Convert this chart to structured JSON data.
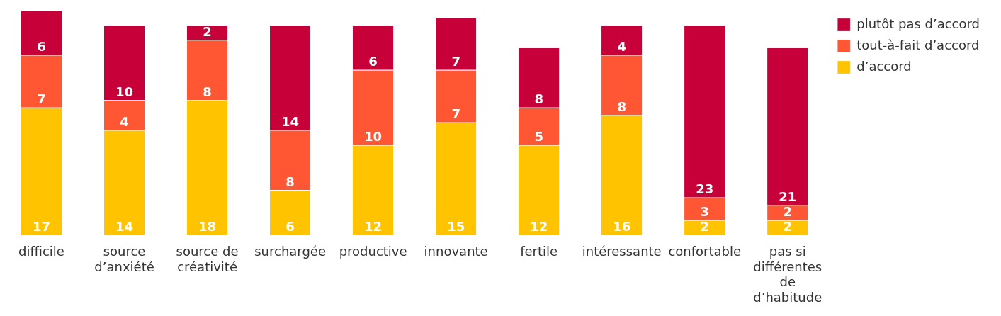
{
  "chart_data": {
    "type": "bar",
    "stacked": true,
    "data_labels": true,
    "grid": false,
    "legend": "top right",
    "categories": [
      "difficile",
      "source d’anxiété",
      "source de créativité",
      "surchargée",
      "productive",
      "innovante",
      "fertile",
      "intéressante",
      "confortable",
      "pas si différentes de d’habitude"
    ],
    "series": [
      {
        "name": "d’accord",
        "color": "#ffc300",
        "values": [
          17,
          14,
          18,
          6,
          12,
          15,
          12,
          16,
          2,
          2
        ]
      },
      {
        "name": "tout-à-fait d’accord",
        "color": "#ff5733",
        "values": [
          7,
          4,
          8,
          8,
          10,
          7,
          5,
          8,
          3,
          2
        ]
      },
      {
        "name": "plutôt pas d’accord",
        "color": "#c70039",
        "values": [
          6,
          10,
          2,
          14,
          6,
          7,
          8,
          4,
          23,
          21
        ]
      }
    ]
  }
}
